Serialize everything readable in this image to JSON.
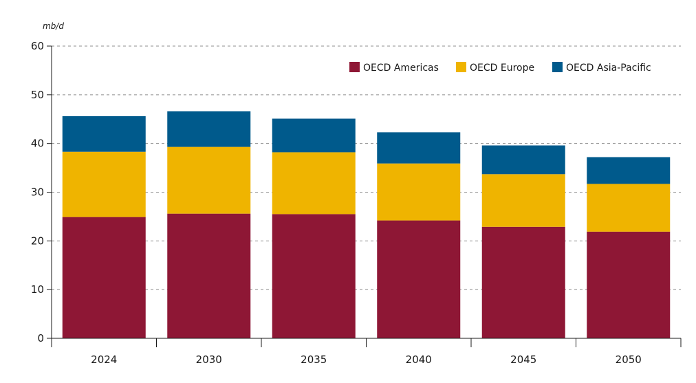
{
  "chart_data": {
    "type": "bar",
    "stacked": true,
    "unit_label": "mb/d",
    "categories": [
      "2024",
      "2030",
      "2035",
      "2040",
      "2045",
      "2050"
    ],
    "series": [
      {
        "name": "OECD Americas",
        "color": "#8e1735",
        "values": [
          24.9,
          25.6,
          25.5,
          24.2,
          22.9,
          21.9
        ]
      },
      {
        "name": "OECD Europe",
        "color": "#efb400",
        "values": [
          13.4,
          13.7,
          12.7,
          11.7,
          10.8,
          9.8
        ]
      },
      {
        "name": "OECD Asia-Pacific",
        "color": "#005a8c",
        "values": [
          7.3,
          7.3,
          6.9,
          6.4,
          5.9,
          5.5
        ]
      }
    ],
    "ylim": [
      0,
      60
    ],
    "yticks": [
      "0",
      "10",
      "20",
      "30",
      "40",
      "50",
      "60"
    ],
    "grid": true,
    "legend_position": "top-right"
  }
}
